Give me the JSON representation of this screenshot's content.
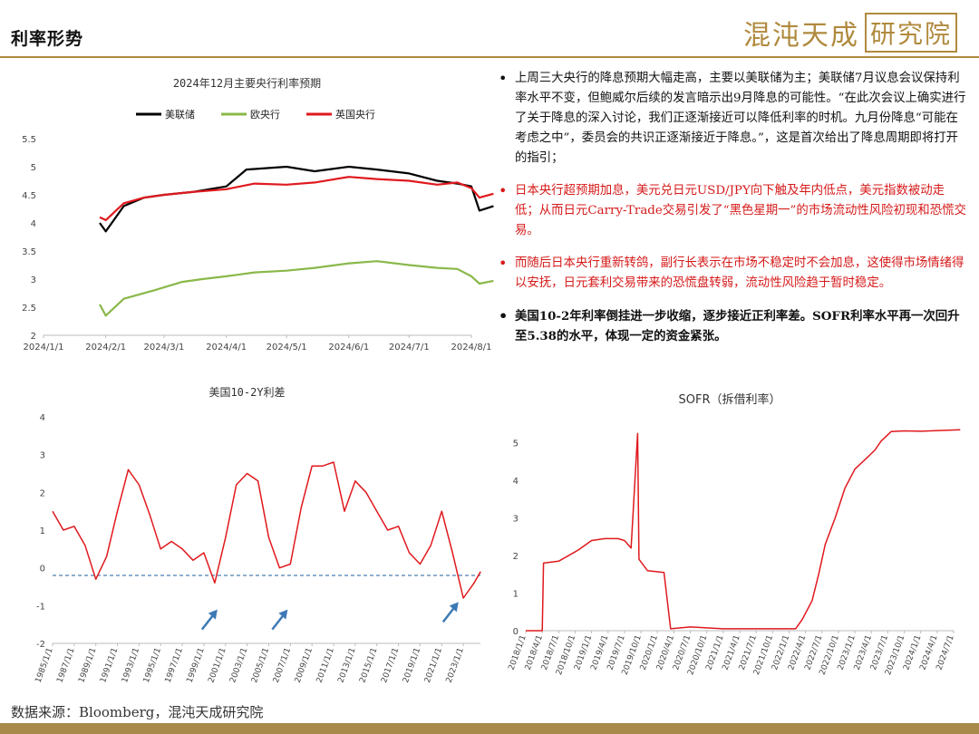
{
  "header": {
    "title": "利率形势",
    "logo_main": "混沌天成",
    "logo_box": "研究院"
  },
  "footer": {
    "source": "数据来源：Bloomberg，混沌天成研究院"
  },
  "bullets": [
    {
      "color": "black",
      "text": "上周三大央行的降息预期大幅走高，主要以美联储为主；美联储7月议息会议保持利率水平不变，但鲍威尔后续的发言暗示出9月降息的可能性。“在此次会议上确实进行了关于降息的深入讨论，我们正逐渐接近可以降低利率的时机。九月份降息“可能在考虑之中”，委员会的共识正逐渐接近于降息。”，这是首次给出了降息周期即将打开的指引；"
    },
    {
      "color": "red",
      "text": "日本央行超预期加息，美元兑日元USD/JPY向下触及年内低点，美元指数被动走低；从而日元Carry-Trade交易引发了“黑色星期一”的市场流动性风险初现和恐慌交易。"
    },
    {
      "color": "red",
      "text": "而随后日本央行重新转鸽，副行长表示在市场不稳定时不会加息，这使得市场情绪得以安抚，日元套利交易带来的恐慌盘转弱，流动性风险趋于暂时稳定。"
    },
    {
      "color": "black",
      "text": "美国10-2年利率倒挂进一步收缩，逐步接近正利率差。SOFR利率水平再一次回升至5.38的水平，体现一定的资金紧张。"
    }
  ],
  "chart_data": [
    {
      "id": "cb",
      "type": "line",
      "title": "2024年12月主要央行利率预期",
      "x": [
        "2024/1/1",
        "2024/2/1",
        "2024/3/1",
        "2024/4/1",
        "2024/5/1",
        "2024/6/1",
        "2024/7/1",
        "2024/8/1"
      ],
      "xlabels": [
        "2024/1/1",
        "2024/2/1",
        "2024/3/1",
        "2024/4/1",
        "2024/5/1",
        "2024/6/1",
        "2024/7/1",
        "2024/8/1"
      ],
      "ylim": [
        2,
        5.5
      ],
      "yticks": [
        "2",
        "2.5",
        "3",
        "3.5",
        "4",
        "4.5",
        "5",
        "5.5"
      ],
      "legend": "top",
      "grid": false,
      "series": [
        {
          "name": "美联储",
          "color": "#000000",
          "points": [
            [
              "2024/1/29",
              4.0
            ],
            [
              "2024/2/1",
              3.85
            ],
            [
              "2024/2/10",
              4.3
            ],
            [
              "2024/2/20",
              4.45
            ],
            [
              "2024/3/1",
              4.5
            ],
            [
              "2024/3/15",
              4.55
            ],
            [
              "2024/4/1",
              4.65
            ],
            [
              "2024/4/11",
              4.95
            ],
            [
              "2024/5/1",
              5.0
            ],
            [
              "2024/5/15",
              4.92
            ],
            [
              "2024/6/1",
              5.0
            ],
            [
              "2024/6/15",
              4.95
            ],
            [
              "2024/7/1",
              4.88
            ],
            [
              "2024/7/15",
              4.75
            ],
            [
              "2024/7/25",
              4.7
            ],
            [
              "2024/8/1",
              4.65
            ],
            [
              "2024/8/5",
              4.22
            ],
            [
              "2024/8/12",
              4.3
            ]
          ]
        },
        {
          "name": "欧央行",
          "color": "#8ab84a",
          "points": [
            [
              "2024/1/29",
              2.55
            ],
            [
              "2024/2/1",
              2.35
            ],
            [
              "2024/2/10",
              2.65
            ],
            [
              "2024/2/25",
              2.8
            ],
            [
              "2024/3/10",
              2.95
            ],
            [
              "2024/3/20",
              3.0
            ],
            [
              "2024/4/1",
              3.05
            ],
            [
              "2024/4/15",
              3.12
            ],
            [
              "2024/5/1",
              3.15
            ],
            [
              "2024/5/15",
              3.2
            ],
            [
              "2024/6/1",
              3.28
            ],
            [
              "2024/6/15",
              3.32
            ],
            [
              "2024/7/1",
              3.25
            ],
            [
              "2024/7/15",
              3.2
            ],
            [
              "2024/7/25",
              3.18
            ],
            [
              "2024/8/1",
              3.05
            ],
            [
              "2024/8/5",
              2.92
            ],
            [
              "2024/8/12",
              2.97
            ]
          ]
        },
        {
          "name": "英国央行",
          "color": "#e0191e",
          "points": [
            [
              "2024/1/29",
              4.1
            ],
            [
              "2024/2/1",
              4.05
            ],
            [
              "2024/2/10",
              4.35
            ],
            [
              "2024/2/20",
              4.45
            ],
            [
              "2024/3/1",
              4.5
            ],
            [
              "2024/3/15",
              4.55
            ],
            [
              "2024/4/1",
              4.6
            ],
            [
              "2024/4/15",
              4.7
            ],
            [
              "2024/5/1",
              4.68
            ],
            [
              "2024/5/15",
              4.72
            ],
            [
              "2024/6/1",
              4.82
            ],
            [
              "2024/6/15",
              4.78
            ],
            [
              "2024/7/1",
              4.75
            ],
            [
              "2024/7/15",
              4.68
            ],
            [
              "2024/7/25",
              4.72
            ],
            [
              "2024/8/1",
              4.62
            ],
            [
              "2024/8/5",
              4.45
            ],
            [
              "2024/8/12",
              4.52
            ]
          ]
        }
      ]
    },
    {
      "id": "spread",
      "type": "line",
      "title": "美国10-2Y利差",
      "x": [
        "1985/1/1",
        "2024/8/1"
      ],
      "xlabels": [
        "1985/1/1",
        "1987/1/1",
        "1989/1/1",
        "1991/1/1",
        "1993/1/1",
        "1995/1/1",
        "1997/1/1",
        "1999/1/1",
        "2001/1/1",
        "2003/1/1",
        "2005/1/1",
        "2007/1/1",
        "2009/1/1",
        "2011/1/1",
        "2013/1/1",
        "2015/1/1",
        "2017/1/1",
        "2019/1/1",
        "2021/1/1",
        "2023/1/1"
      ],
      "ylim": [
        -2,
        4
      ],
      "yticks": [
        "-2",
        "-1",
        "0",
        "1",
        "2",
        "3",
        "4"
      ],
      "reference_line": -0.2,
      "grid": false,
      "series": [
        {
          "name": "",
          "color": "#e0191e",
          "points": [
            [
              1985.0,
              1.5
            ],
            [
              1986.0,
              1.0
            ],
            [
              1987.0,
              1.1
            ],
            [
              1988.0,
              0.6
            ],
            [
              1989.0,
              -0.3
            ],
            [
              1990.0,
              0.3
            ],
            [
              1991.0,
              1.5
            ],
            [
              1992.0,
              2.6
            ],
            [
              1993.0,
              2.2
            ],
            [
              1994.0,
              1.4
            ],
            [
              1995.0,
              0.5
            ],
            [
              1996.0,
              0.7
            ],
            [
              1997.0,
              0.5
            ],
            [
              1998.0,
              0.2
            ],
            [
              1999.0,
              0.4
            ],
            [
              2000.0,
              -0.4
            ],
            [
              2001.0,
              0.8
            ],
            [
              2002.0,
              2.2
            ],
            [
              2003.0,
              2.5
            ],
            [
              2004.0,
              2.3
            ],
            [
              2005.0,
              0.8
            ],
            [
              2006.0,
              0.0
            ],
            [
              2007.0,
              0.1
            ],
            [
              2008.0,
              1.6
            ],
            [
              2009.0,
              2.7
            ],
            [
              2010.0,
              2.7
            ],
            [
              2011.0,
              2.8
            ],
            [
              2012.0,
              1.5
            ],
            [
              2013.0,
              2.3
            ],
            [
              2014.0,
              2.0
            ],
            [
              2015.0,
              1.5
            ],
            [
              2016.0,
              1.0
            ],
            [
              2017.0,
              1.1
            ],
            [
              2018.0,
              0.4
            ],
            [
              2019.0,
              0.1
            ],
            [
              2020.0,
              0.6
            ],
            [
              2021.0,
              1.5
            ],
            [
              2022.0,
              0.4
            ],
            [
              2023.0,
              -0.8
            ],
            [
              2024.0,
              -0.4
            ],
            [
              2024.6,
              -0.1
            ]
          ]
        }
      ]
    },
    {
      "id": "sofr",
      "type": "line",
      "title": "SOFR（拆借利率）",
      "x": [
        "2018/1/1",
        "2024/7/1"
      ],
      "xlabels": [
        "2018/1/1",
        "2018/4/1",
        "2018/7/1",
        "2018/10/1",
        "2019/1/1",
        "2019/4/1",
        "2019/7/1",
        "2019/10/1",
        "2020/1/1",
        "2020/4/1",
        "2020/7/1",
        "2020/10/1",
        "2021/1/1",
        "2021/4/1",
        "2021/7/1",
        "2021/10/1",
        "2022/1/1",
        "2022/4/1",
        "2022/7/1",
        "2022/10/1",
        "2023/1/1",
        "2023/4/1",
        "2023/7/1",
        "2023/10/1",
        "2024/1/1",
        "2024/4/1",
        "2024/7/1"
      ],
      "ylim": [
        0,
        5.5
      ],
      "yticks": [
        "0",
        "1",
        "2",
        "3",
        "4",
        "5"
      ],
      "grid": false,
      "series": [
        {
          "name": "",
          "color": "#e0191e",
          "points": [
            [
              2018.0,
              0.0
            ],
            [
              2018.25,
              0.0
            ],
            [
              2018.27,
              1.8
            ],
            [
              2018.5,
              1.85
            ],
            [
              2018.8,
              2.15
            ],
            [
              2019.0,
              2.4
            ],
            [
              2019.2,
              2.45
            ],
            [
              2019.4,
              2.45
            ],
            [
              2019.5,
              2.4
            ],
            [
              2019.6,
              2.2
            ],
            [
              2019.7,
              5.25
            ],
            [
              2019.72,
              1.9
            ],
            [
              2019.85,
              1.6
            ],
            [
              2020.1,
              1.55
            ],
            [
              2020.2,
              0.05
            ],
            [
              2020.5,
              0.1
            ],
            [
              2021.0,
              0.05
            ],
            [
              2021.5,
              0.05
            ],
            [
              2022.1,
              0.05
            ],
            [
              2022.2,
              0.3
            ],
            [
              2022.35,
              0.8
            ],
            [
              2022.45,
              1.5
            ],
            [
              2022.55,
              2.3
            ],
            [
              2022.7,
              3.0
            ],
            [
              2022.85,
              3.8
            ],
            [
              2023.0,
              4.3
            ],
            [
              2023.15,
              4.55
            ],
            [
              2023.3,
              4.8
            ],
            [
              2023.4,
              5.05
            ],
            [
              2023.55,
              5.3
            ],
            [
              2023.75,
              5.32
            ],
            [
              2024.0,
              5.31
            ],
            [
              2024.6,
              5.35
            ]
          ]
        }
      ]
    }
  ]
}
